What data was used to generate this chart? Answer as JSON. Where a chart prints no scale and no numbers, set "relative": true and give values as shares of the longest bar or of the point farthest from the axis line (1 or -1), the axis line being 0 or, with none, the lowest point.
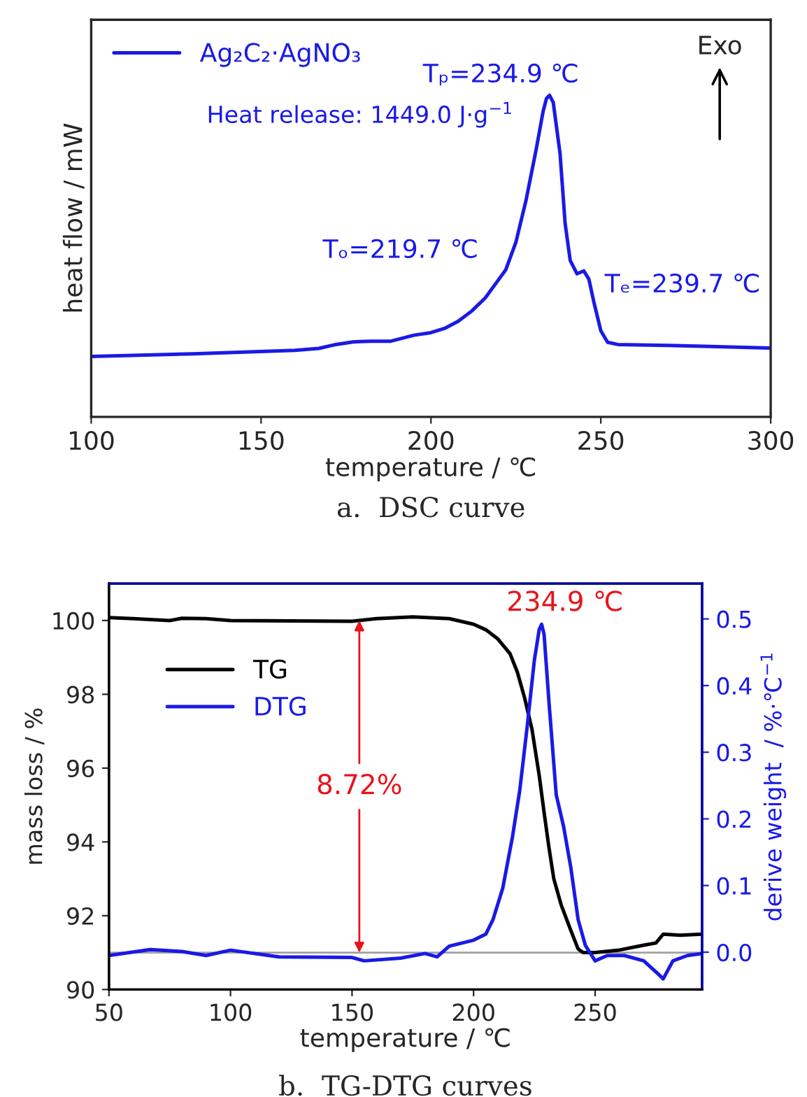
{
  "chart_data": [
    {
      "type": "line",
      "title": "a.  DSC curve",
      "xlabel": "temperature / ℃",
      "ylabel": "heat flow / mW",
      "relative": true,
      "xlim": [
        100,
        300
      ],
      "xticks": [
        100,
        150,
        200,
        250,
        300
      ],
      "tick_labels": "x",
      "legend": "top left",
      "grid": false,
      "series": [
        {
          "name": "Ag₂C₂·AgNO₃",
          "color": "#1a1ae6",
          "x": [
            100,
            130,
            160,
            167,
            172,
            177,
            182,
            188,
            195,
            200,
            204,
            208,
            212,
            216,
            220,
            222,
            225,
            228,
            231,
            233,
            234,
            234.9,
            236,
            238,
            239.5,
            241,
            243,
            245,
            246.5,
            248,
            250,
            252,
            255,
            270,
            300
          ],
          "values": [
            0.188,
            0.196,
            0.207,
            0.213,
            0.225,
            0.233,
            0.235,
            0.235,
            0.254,
            0.262,
            0.275,
            0.297,
            0.329,
            0.37,
            0.428,
            0.457,
            0.543,
            0.674,
            0.833,
            0.949,
            0.99,
            1.0,
            0.978,
            0.819,
            0.601,
            0.486,
            0.445,
            0.454,
            0.428,
            0.355,
            0.268,
            0.232,
            0.225,
            0.222,
            0.214
          ]
        }
      ],
      "annotations": [
        {
          "text": "Tₚ=234.9 ℃",
          "x": 234.9,
          "y": 1.0
        },
        "Heat release: 1449.0 J·g$^{−1}$",
        {
          "text": "Tₒ=219.7 ℃",
          "x": 219.7,
          "y": 0.43
        },
        {
          "text": "Tₑ=239.7 ℃",
          "x": 239.7,
          "y": 0.58
        },
        "Exo"
      ]
    },
    {
      "type": "line",
      "title": "b.  TG-DTG curves",
      "xlabel": "temperature / ℃",
      "ylabel": "mass loss / %",
      "y2label": "derive weight  / %·℃$^{−1}$",
      "xlim": [
        50,
        294
      ],
      "xticks": [
        50,
        100,
        150,
        200,
        250
      ],
      "ylim": [
        90,
        101
      ],
      "yticks": [
        90,
        92,
        94,
        96,
        98,
        100
      ],
      "y2lim": [
        -0.056,
        0.553
      ],
      "y2ticks": [
        {
          "value": 0,
          "label": "0.0"
        },
        0.1,
        0.2,
        0.3,
        0.4,
        0.5
      ],
      "legend": "top left",
      "grid": false,
      "series": [
        {
          "name": "TG",
          "color": "#000000",
          "x": [
            50,
            60,
            75,
            80,
            90,
            100,
            150,
            160,
            175,
            190,
            200,
            205,
            210,
            215,
            218,
            221,
            224,
            227,
            229,
            231,
            233,
            236,
            240,
            243,
            245,
            250,
            260,
            270,
            275,
            278,
            285,
            294
          ],
          "values": [
            100.08,
            100.05,
            100.0,
            100.06,
            100.05,
            100.0,
            99.98,
            100.05,
            100.1,
            100.05,
            99.9,
            99.75,
            99.5,
            99.1,
            98.6,
            97.9,
            97.06,
            95.8,
            94.8,
            93.85,
            93.0,
            92.3,
            91.6,
            91.1,
            91.0,
            91.0,
            91.07,
            91.2,
            91.26,
            91.5,
            91.47,
            91.5
          ]
        },
        {
          "name": "DTG",
          "color": "#1a1ae6",
          "axis": "y2",
          "x": [
            50,
            67,
            80,
            90,
            100,
            120,
            150,
            155,
            170,
            180,
            185,
            190,
            200,
            205,
            208,
            212,
            216,
            219,
            222,
            225,
            227,
            228,
            229,
            231,
            234,
            237,
            240,
            243,
            246,
            250,
            255,
            262,
            270,
            276,
            278,
            282,
            288,
            294
          ],
          "values": [
            -0.005,
            0.004,
            0.001,
            -0.005,
            0.003,
            -0.007,
            -0.008,
            -0.013,
            -0.009,
            -0.002,
            -0.007,
            0.009,
            0.018,
            0.027,
            0.049,
            0.096,
            0.173,
            0.243,
            0.337,
            0.438,
            0.484,
            0.492,
            0.477,
            0.376,
            0.236,
            0.189,
            0.127,
            0.049,
            0.01,
            -0.013,
            -0.005,
            -0.005,
            -0.013,
            -0.033,
            -0.04,
            -0.013,
            -0.005,
            -0.002
          ]
        }
      ],
      "ref_lines": [
        {
          "axis": "y",
          "value": 91.0,
          "color": "#a0a0a0"
        }
      ],
      "annotations": [
        {
          "text": "8.72%",
          "x": 153,
          "y": 91.0
        },
        "234.9 ℃"
      ]
    }
  ]
}
